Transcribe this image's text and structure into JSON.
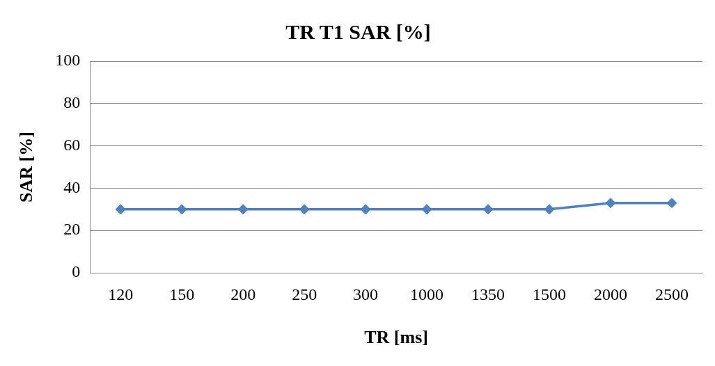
{
  "chart_data": {
    "type": "line",
    "title": "TR T1 SAR [%]",
    "xlabel": "TR [ms]",
    "ylabel": "SAR [%]",
    "categories": [
      "120",
      "150",
      "200",
      "250",
      "300",
      "1000",
      "1350",
      "1500",
      "2000",
      "2500"
    ],
    "series": [
      {
        "color": "#4f81bd",
        "values": [
          30,
          30,
          30,
          30,
          30,
          30,
          30,
          30,
          33,
          33
        ]
      }
    ],
    "ylim": [
      0,
      100
    ],
    "yticks": [
      0,
      20,
      40,
      60,
      80,
      100
    ],
    "grid": "y",
    "legend": false,
    "marker": "diamond",
    "line_style": "solid"
  }
}
